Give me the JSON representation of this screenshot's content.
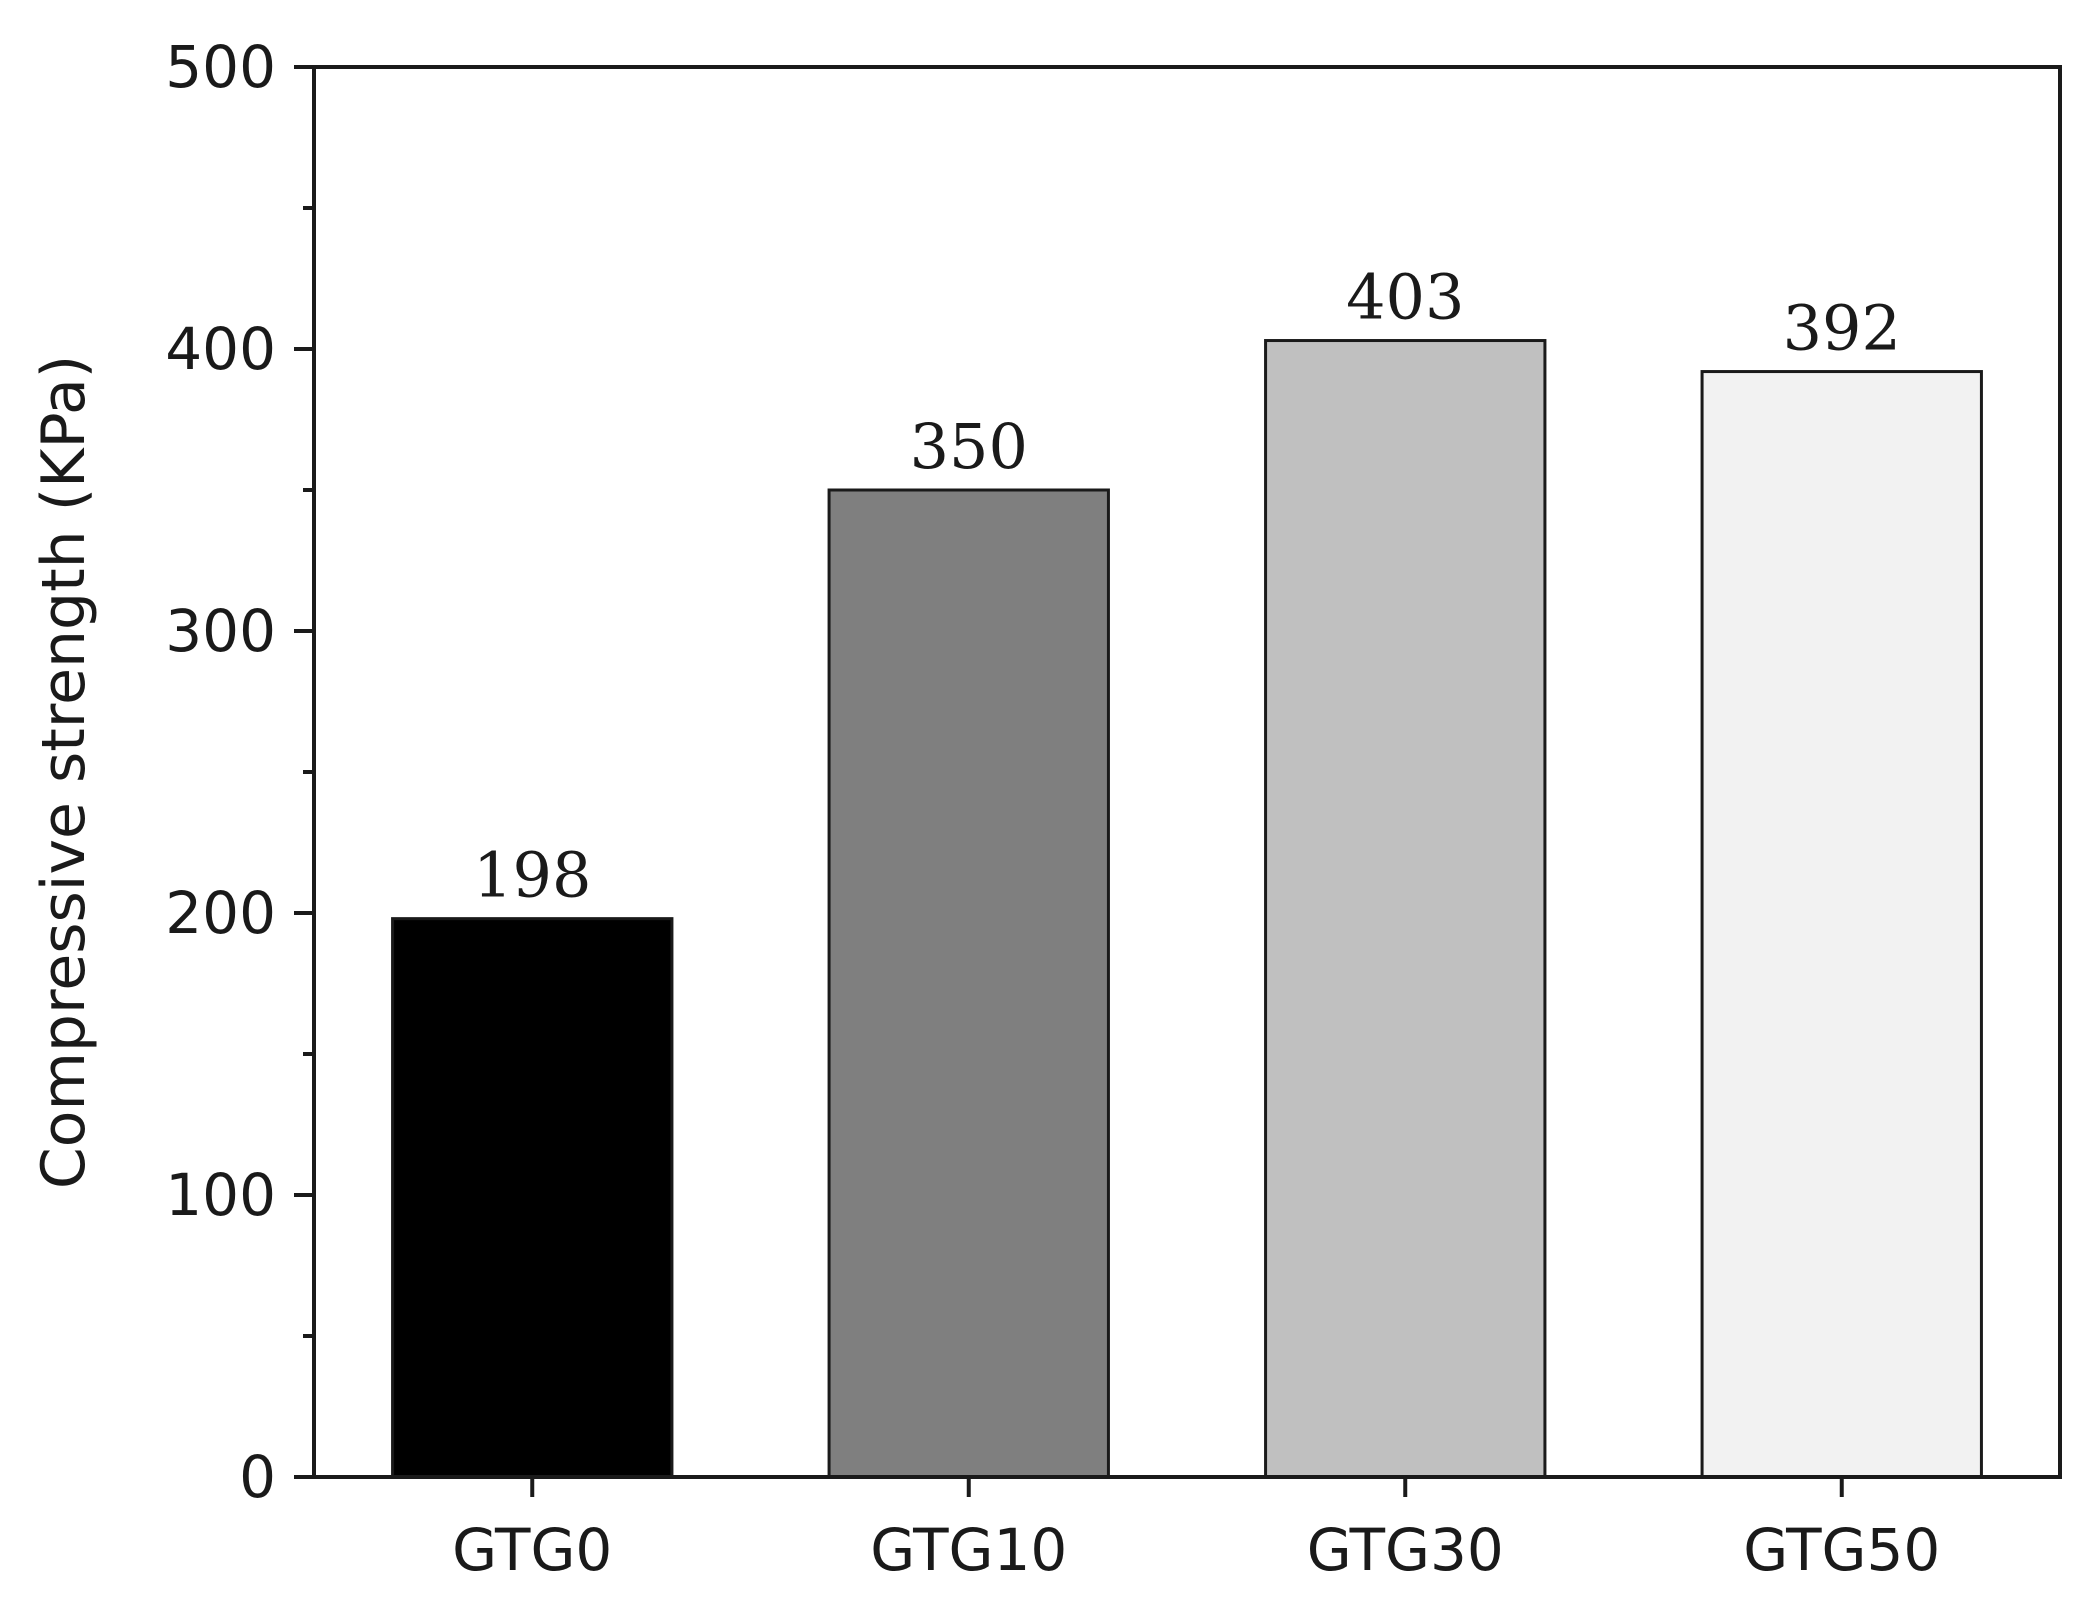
{
  "chart_data": {
    "type": "bar",
    "title": "",
    "xlabel": "",
    "ylabel": "Compressive strength (KPa)",
    "categories": [
      "GTG0",
      "GTG10",
      "GTG30",
      "GTG50"
    ],
    "values": [
      198,
      350,
      403,
      392
    ],
    "data_labels": [
      "198",
      "350",
      "403",
      "392"
    ],
    "bar_colors": [
      "#000000",
      "#7f7f7f",
      "#c0c0c0",
      "#f2f2f2"
    ],
    "ylim": [
      0,
      500
    ],
    "yticks": [
      0,
      100,
      200,
      300,
      400,
      500
    ],
    "ytick_labels": [
      "0",
      "100",
      "200",
      "300",
      "400",
      "500"
    ],
    "y_minor_step": 50,
    "grid": false,
    "legend": "none"
  }
}
